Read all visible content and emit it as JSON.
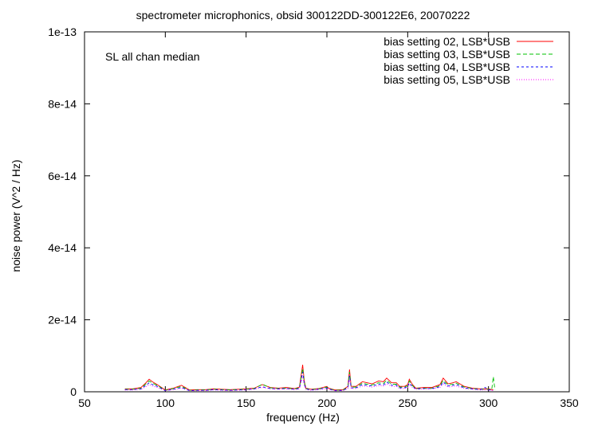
{
  "chart_data": {
    "type": "line",
    "title": "spectrometer microphonics, obsid 300122DD-300122E6, 20070222",
    "annotation": "SL all chan median",
    "xlabel": "frequency (Hz)",
    "ylabel": "noise power (V^2 / Hz)",
    "xlim": [
      50,
      350
    ],
    "ylim": [
      0,
      1e-13
    ],
    "xticks": [
      50,
      100,
      150,
      200,
      250,
      300,
      350
    ],
    "xtick_labels": [
      "50",
      "100",
      "150",
      "200",
      "250",
      "300",
      "350"
    ],
    "yticks": [
      0,
      2e-14,
      4e-14,
      6e-14,
      8e-14,
      1e-13
    ],
    "ytick_labels": [
      "0",
      "2e-14",
      "4e-14",
      "6e-14",
      "8e-14",
      "1e-13"
    ],
    "grid": false,
    "legend_position": "top-right",
    "series": [
      {
        "name": "bias setting 02, LSB*USB",
        "color": "#ff0000",
        "x": [
          75,
          80,
          85,
          88,
          90,
          92,
          95,
          100,
          105,
          110,
          115,
          120,
          125,
          130,
          140,
          150,
          155,
          160,
          165,
          170,
          175,
          180,
          183,
          185,
          186,
          187,
          190,
          195,
          200,
          201,
          205,
          210,
          213,
          214,
          215,
          218,
          222,
          225,
          228,
          232,
          235,
          237,
          240,
          243,
          245,
          248,
          250,
          251,
          253,
          255,
          260,
          265,
          270,
          272,
          275,
          278,
          280,
          285,
          290,
          295,
          300,
          303
        ],
        "y": [
          8e-16,
          8e-16,
          1.2e-15,
          2.5e-15,
          3.5e-15,
          2.8e-15,
          2e-15,
          5e-16,
          1e-15,
          1.8e-15,
          5e-16,
          6e-16,
          6e-16,
          8e-16,
          6e-16,
          8e-16,
          1e-15,
          2e-15,
          1.2e-15,
          1e-15,
          1.2e-15,
          9e-16,
          1.3e-15,
          7.5e-15,
          3e-15,
          1e-15,
          7e-16,
          9e-16,
          1.5e-15,
          1e-15,
          5e-16,
          6e-16,
          1.5e-15,
          6.2e-15,
          1.5e-15,
          1.5e-15,
          2.8e-15,
          2.5e-15,
          2.2e-15,
          3e-15,
          2.8e-15,
          3.8e-15,
          2.5e-15,
          2.5e-15,
          1.5e-15,
          1.5e-15,
          2e-15,
          3.5e-15,
          2e-15,
          1e-15,
          1.2e-15,
          1.2e-15,
          2e-15,
          3.8e-15,
          2.2e-15,
          2.5e-15,
          2.8e-15,
          1.5e-15,
          1e-15,
          8e-16,
          8e-16,
          5e-16
        ]
      },
      {
        "name": "bias setting 03, LSB*USB",
        "color": "#00c000",
        "x": [
          75,
          80,
          85,
          88,
          90,
          92,
          95,
          100,
          105,
          110,
          115,
          120,
          125,
          130,
          140,
          150,
          155,
          160,
          165,
          170,
          175,
          180,
          183,
          185,
          186,
          187,
          190,
          195,
          200,
          201,
          205,
          210,
          213,
          214,
          215,
          218,
          222,
          225,
          228,
          232,
          235,
          237,
          240,
          243,
          245,
          248,
          250,
          251,
          253,
          255,
          260,
          265,
          270,
          272,
          275,
          278,
          280,
          285,
          290,
          295,
          300,
          302,
          303,
          304
        ],
        "y": [
          7e-16,
          7e-16,
          1e-15,
          2.2e-15,
          3e-15,
          2.4e-15,
          1.8e-15,
          4e-16,
          9e-16,
          1.5e-15,
          4e-16,
          5e-16,
          5e-16,
          7e-16,
          5e-16,
          7e-16,
          9e-16,
          2.1e-15,
          1.1e-15,
          9e-16,
          1e-15,
          8e-16,
          1.1e-15,
          6.5e-15,
          2.6e-15,
          9e-16,
          6e-16,
          8e-16,
          1.3e-15,
          9e-16,
          4e-16,
          5e-16,
          1.3e-15,
          5.5e-15,
          1.3e-15,
          1.3e-15,
          2.4e-15,
          2.1e-15,
          1.9e-15,
          2.5e-15,
          2.3e-15,
          3.2e-15,
          2.1e-15,
          2.1e-15,
          1.3e-15,
          1.3e-15,
          1.7e-15,
          3e-15,
          1.7e-15,
          9e-16,
          1e-15,
          1e-15,
          1.7e-15,
          3.2e-15,
          1.9e-15,
          2.1e-15,
          2.4e-15,
          1.3e-15,
          9e-16,
          7e-16,
          7e-16,
          5e-16,
          4.2e-15,
          5e-16
        ]
      },
      {
        "name": "bias setting 04, LSB*USB",
        "color": "#0000ff",
        "x": [
          75,
          80,
          85,
          88,
          90,
          92,
          95,
          100,
          105,
          110,
          115,
          120,
          125,
          130,
          140,
          150,
          155,
          160,
          165,
          170,
          175,
          180,
          183,
          185,
          186,
          187,
          190,
          195,
          200,
          201,
          205,
          210,
          213,
          214,
          215,
          218,
          222,
          225,
          228,
          232,
          235,
          237,
          240,
          243,
          245,
          248,
          250,
          251,
          253,
          255,
          260,
          265,
          270,
          272,
          275,
          278,
          280,
          285,
          290,
          295,
          298,
          300,
          303
        ],
        "y": [
          6e-16,
          6e-16,
          8e-16,
          1.8e-15,
          2.5e-15,
          2e-15,
          1.5e-15,
          3e-16,
          7e-16,
          1.2e-15,
          3e-16,
          4e-16,
          4e-16,
          6e-16,
          4e-16,
          6e-16,
          8e-16,
          1.4e-15,
          9e-16,
          8e-16,
          9e-16,
          7e-16,
          9e-16,
          5.5e-15,
          2.2e-15,
          8e-16,
          5e-16,
          7e-16,
          1.1e-15,
          8e-16,
          3e-16,
          4e-16,
          1.1e-15,
          4.5e-15,
          1.1e-15,
          1.1e-15,
          2e-15,
          1.8e-15,
          1.6e-15,
          2.1e-15,
          1.9e-15,
          2.7e-15,
          1.8e-15,
          1.8e-15,
          1.1e-15,
          1.1e-15,
          1.4e-15,
          2.5e-15,
          1.4e-15,
          8e-16,
          9e-16,
          9e-16,
          1.4e-15,
          2.7e-15,
          1.6e-15,
          1.8e-15,
          2e-15,
          1.1e-15,
          8e-16,
          6e-16,
          1.2e-15,
          6e-16,
          4e-16
        ]
      },
      {
        "name": "bias setting 05, LSB*USB",
        "color": "#ff00ff",
        "x": [
          75,
          80,
          85,
          88,
          90,
          92,
          95,
          100,
          105,
          110,
          115,
          120,
          125,
          130,
          140,
          150,
          155,
          160,
          165,
          170,
          175,
          180,
          183,
          185,
          186,
          187,
          190,
          195,
          200,
          201,
          205,
          210,
          213,
          214,
          215,
          218,
          222,
          225,
          228,
          232,
          235,
          237,
          240,
          243,
          245,
          248,
          250,
          251,
          253,
          255,
          260,
          265,
          270,
          272,
          275,
          278,
          280,
          285,
          290,
          295,
          300,
          303
        ],
        "y": [
          5e-16,
          5e-16,
          7e-16,
          1.4e-15,
          2e-15,
          1.6e-15,
          1.2e-15,
          3e-16,
          6e-16,
          1e-15,
          3e-16,
          3e-16,
          3e-16,
          5e-16,
          3e-16,
          5e-16,
          7e-16,
          1.2e-15,
          8e-16,
          7e-16,
          8e-16,
          6e-16,
          8e-16,
          4.5e-15,
          1.8e-15,
          7e-16,
          4e-16,
          6e-16,
          9e-16,
          7e-16,
          3e-16,
          3e-16,
          9e-16,
          3.6e-15,
          9e-16,
          9e-16,
          1.6e-15,
          1.5e-15,
          1.3e-15,
          1.7e-15,
          1.6e-15,
          2.2e-15,
          1.5e-15,
          1.5e-15,
          9e-16,
          9e-16,
          1.2e-15,
          2e-15,
          1.2e-15,
          7e-16,
          8e-16,
          8e-16,
          1.2e-15,
          2.2e-15,
          1.3e-15,
          1.5e-15,
          1.6e-15,
          9e-16,
          7e-16,
          5e-16,
          5e-16,
          3e-16
        ]
      }
    ]
  }
}
